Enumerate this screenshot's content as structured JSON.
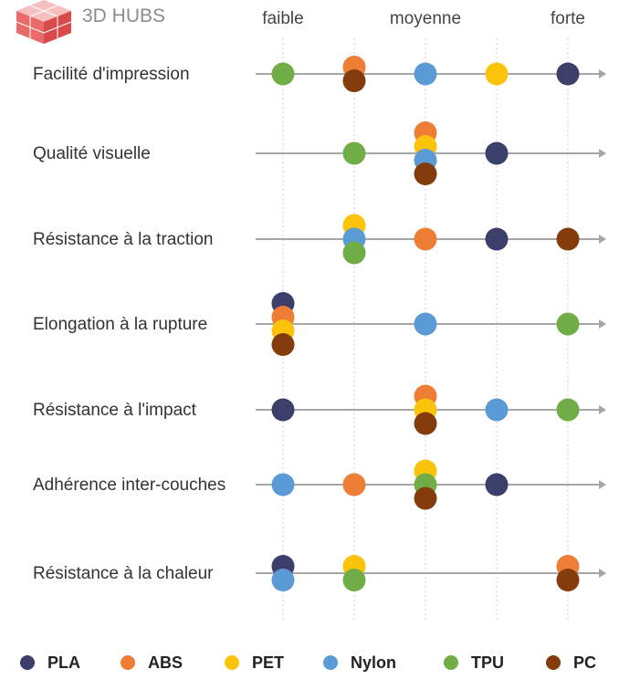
{
  "brand": {
    "name": "3D HUBS"
  },
  "chart_data": {
    "type": "scatter",
    "x_levels": [
      {
        "label": "faible",
        "value": 1
      },
      {
        "label": "",
        "value": 2
      },
      {
        "label": "moyenne",
        "value": 3
      },
      {
        "label": "",
        "value": 4
      },
      {
        "label": "forte",
        "value": 5
      }
    ],
    "materials": [
      {
        "key": "PLA",
        "name": "PLA",
        "color": "#3d3f6b"
      },
      {
        "key": "ABS",
        "name": "ABS",
        "color": "#ee7d36"
      },
      {
        "key": "PET",
        "name": "PET",
        "color": "#fcc30b"
      },
      {
        "key": "Nylon",
        "name": "Nylon",
        "color": "#5b9bd5"
      },
      {
        "key": "TPU",
        "name": "TPU",
        "color": "#70ad47"
      },
      {
        "key": "PC",
        "name": "PC",
        "color": "#843c0c"
      }
    ],
    "properties": [
      {
        "label": "Facilité d'impression",
        "values": {
          "PLA": 5,
          "ABS": 2,
          "PET": 4,
          "Nylon": 3,
          "TPU": 1,
          "PC": 2
        }
      },
      {
        "label": "Qualité visuelle",
        "values": {
          "PLA": 4,
          "ABS": 3,
          "PET": 3,
          "Nylon": 3,
          "TPU": 2,
          "PC": 3
        }
      },
      {
        "label": "Résistance à la traction",
        "values": {
          "PLA": 4,
          "ABS": 3,
          "PET": 2,
          "Nylon": 2,
          "TPU": 2,
          "PC": 5
        }
      },
      {
        "label": "Elongation à la rupture",
        "values": {
          "PLA": 1,
          "ABS": 1,
          "PET": 1,
          "Nylon": 3,
          "TPU": 5,
          "PC": 1
        }
      },
      {
        "label": "Résistance à l'impact",
        "values": {
          "PLA": 1,
          "ABS": 3,
          "PET": 3,
          "Nylon": 4,
          "TPU": 5,
          "PC": 3
        }
      },
      {
        "label": "Adhérence inter-couches",
        "values": {
          "PLA": 4,
          "ABS": 2,
          "PET": 3,
          "Nylon": 1,
          "TPU": 3,
          "PC": 3
        }
      },
      {
        "label": "Résistance à la chaleur",
        "values": {
          "PLA": 1,
          "ABS": 5,
          "PET": 2,
          "Nylon": 1,
          "TPU": 2,
          "PC": 5
        }
      }
    ],
    "legend_position": "bottom",
    "grid": "vertical-dotted"
  }
}
